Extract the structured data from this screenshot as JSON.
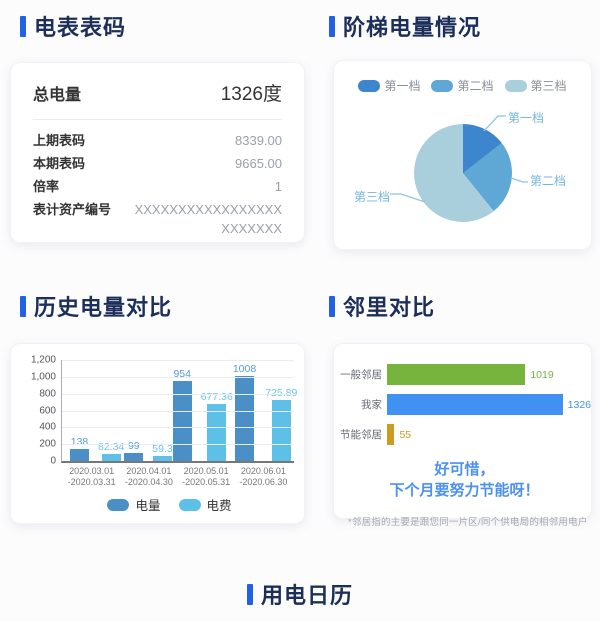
{
  "accent_color": "#2161e6",
  "title_color": "#1c2e5a",
  "titles": {
    "meter": "电表表码",
    "tier": "阶梯电量情况",
    "history": "历史电量对比",
    "neighbor": "邻里对比",
    "calendar": "用电日历"
  },
  "meter_card": {
    "total_label": "总电量",
    "total_value": "1326度",
    "rows": [
      {
        "label": "上期表码",
        "value": "8339.00"
      },
      {
        "label": "本期表码",
        "value": "9665.00"
      },
      {
        "label": "倍率",
        "value": "1"
      },
      {
        "label": "表计资产编号",
        "value": "XXXXXXXXXXXXXXXXX\nXXXXXXX"
      }
    ]
  },
  "chart_data": [
    {
      "id": "tier-pie",
      "type": "pie",
      "title": "阶梯电量情况",
      "labels": [
        "第一档",
        "第二档",
        "第三档"
      ],
      "values_pct": [
        14.4,
        24.7,
        60.9
      ],
      "angles_deg": [
        [
          0,
          52
        ],
        [
          52,
          141
        ],
        [
          141,
          360
        ]
      ],
      "colors": [
        "#3d85cc",
        "#5fa8d6",
        "#a9cfdd"
      ],
      "legend_position": "top",
      "callout_color": "#74b7de"
    },
    {
      "id": "history-bar",
      "type": "bar",
      "title": "历史电量对比",
      "categories": [
        [
          "2020.03.01",
          "-2020.03.31"
        ],
        [
          "2020.04.01",
          "-2020.04.30"
        ],
        [
          "2020.05.01",
          "-2020.05.31"
        ],
        [
          "2020.06.01",
          "-2020.06.30"
        ]
      ],
      "series": [
        {
          "name": "电量",
          "color": "#4a8fc6",
          "label_color": "#5599dd",
          "values": [
            138,
            99,
            954,
            1008
          ],
          "labels": [
            "138",
            "99",
            "954",
            "1008"
          ]
        },
        {
          "name": "电费",
          "color": "#5cc0e8",
          "label_color": "#6cc5ea",
          "values": [
            82.34,
            59.3,
            677.36,
            725.89
          ],
          "labels": [
            "82.34",
            "59.3",
            "677.36",
            "725.89"
          ]
        }
      ],
      "ylim": [
        0,
        1200
      ],
      "yticks": [
        "1,200",
        "1,000",
        "800",
        "600",
        "400",
        "200",
        "0"
      ],
      "grid": true,
      "legend_position": "bottom"
    },
    {
      "id": "neighbor-hbar",
      "type": "bar",
      "orientation": "horizontal",
      "title": "邻里对比",
      "categories": [
        "一般邻居",
        "我家",
        "节能邻居"
      ],
      "values": [
        1019,
        1326,
        55
      ],
      "colors": [
        "#77b43d",
        "#4191f2",
        "#c99c1f"
      ],
      "xmax": 1326
    }
  ],
  "neighbor_card": {
    "message_line1": "好可惜，",
    "message_line2": "下个月要努力节能呀！",
    "footnote": "*邻居指的主要是跟您同一片区/同个供电局的相邻用电户"
  }
}
